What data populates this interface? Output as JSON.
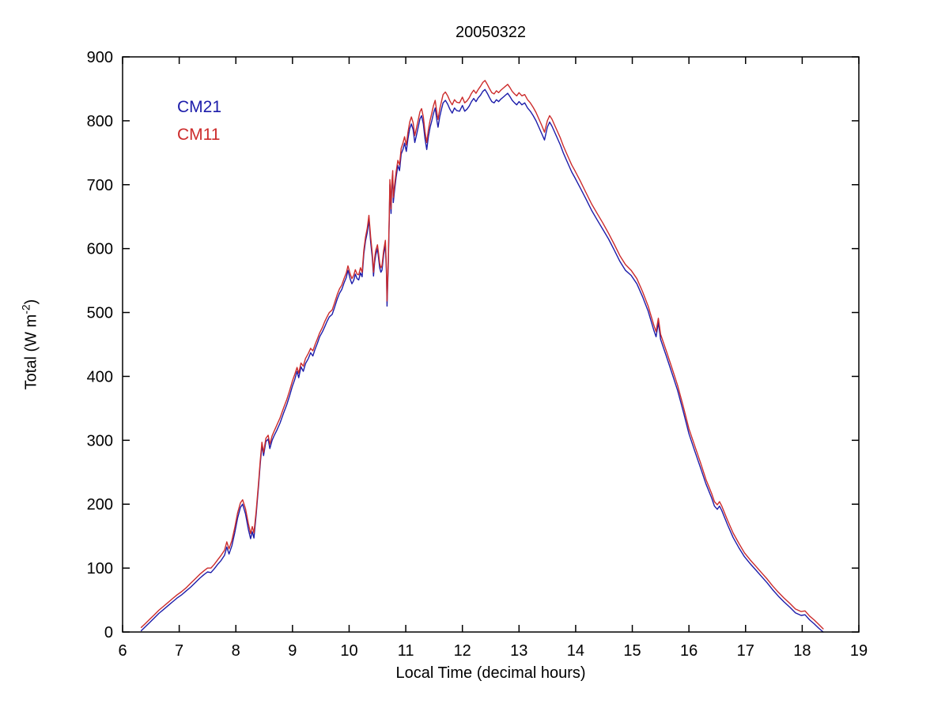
{
  "figure": {
    "title": "20050322",
    "xlabel": "Local Time (decimal hours)",
    "ylabel_main": "Total (W m",
    "ylabel_sup": "-2",
    "ylabel_end": ")",
    "legend": [
      {
        "label": "CM21",
        "color": "#1c1caa"
      },
      {
        "label": "CM11",
        "color": "#cc2b2b"
      }
    ],
    "axis_color": "#000000",
    "background_color": "#ffffff"
  },
  "chart_data": {
    "type": "line",
    "title": "20050322",
    "xlabel": "Local Time (decimal hours)",
    "ylabel": "Total (W m⁻²)",
    "xlim": [
      6,
      19
    ],
    "ylim": [
      0,
      900
    ],
    "xticks": [
      6,
      7,
      8,
      9,
      10,
      11,
      12,
      13,
      14,
      15,
      16,
      17,
      18,
      19
    ],
    "yticks": [
      0,
      100,
      200,
      300,
      400,
      500,
      600,
      700,
      800,
      900
    ],
    "grid": false,
    "legend_position": "upper-left-text",
    "x": [
      6.33,
      6.4,
      6.48,
      6.56,
      6.64,
      6.72,
      6.8,
      6.88,
      6.96,
      7.04,
      7.12,
      7.2,
      7.28,
      7.36,
      7.44,
      7.5,
      7.56,
      7.62,
      7.68,
      7.74,
      7.8,
      7.84,
      7.88,
      7.93,
      7.98,
      8.03,
      8.08,
      8.12,
      8.17,
      8.22,
      8.26,
      8.29,
      8.32,
      8.36,
      8.4,
      8.43,
      8.46,
      8.49,
      8.53,
      8.57,
      8.6,
      8.64,
      8.68,
      8.72,
      8.78,
      8.84,
      8.9,
      8.95,
      9.0,
      9.04,
      9.08,
      9.11,
      9.15,
      9.19,
      9.23,
      9.28,
      9.32,
      9.36,
      9.4,
      9.44,
      9.48,
      9.53,
      9.57,
      9.61,
      9.65,
      9.7,
      9.74,
      9.79,
      9.83,
      9.87,
      9.91,
      9.95,
      9.98,
      10.02,
      10.05,
      10.08,
      10.11,
      10.14,
      10.17,
      10.2,
      10.23,
      10.26,
      10.29,
      10.32,
      10.35,
      10.38,
      10.41,
      10.43,
      10.45,
      10.47,
      10.5,
      10.52,
      10.54,
      10.56,
      10.58,
      10.61,
      10.64,
      10.66,
      10.67,
      10.69,
      10.71,
      10.72,
      10.74,
      10.75,
      10.77,
      10.78,
      10.8,
      10.83,
      10.86,
      10.89,
      10.92,
      10.95,
      10.98,
      11.01,
      11.04,
      11.07,
      11.1,
      11.13,
      11.16,
      11.19,
      11.22,
      11.25,
      11.28,
      11.31,
      11.34,
      11.37,
      11.4,
      11.43,
      11.46,
      11.49,
      11.52,
      11.55,
      11.57,
      11.6,
      11.63,
      11.66,
      11.7,
      11.74,
      11.78,
      11.82,
      11.86,
      11.9,
      11.95,
      12.0,
      12.04,
      12.08,
      12.12,
      12.16,
      12.2,
      12.24,
      12.28,
      12.32,
      12.36,
      12.4,
      12.44,
      12.48,
      12.52,
      12.56,
      12.6,
      12.64,
      12.68,
      12.72,
      12.76,
      12.8,
      12.84,
      12.88,
      12.92,
      12.96,
      13.0,
      13.05,
      13.1,
      13.15,
      13.2,
      13.25,
      13.3,
      13.35,
      13.4,
      13.45,
      13.5,
      13.54,
      13.58,
      13.63,
      13.68,
      13.73,
      13.78,
      13.83,
      13.88,
      13.93,
      13.98,
      14.08,
      14.18,
      14.28,
      14.38,
      14.48,
      14.58,
      14.68,
      14.78,
      14.88,
      14.98,
      15.08,
      15.18,
      15.28,
      15.38,
      15.42,
      15.46,
      15.5,
      15.6,
      15.7,
      15.8,
      15.9,
      16.0,
      16.1,
      16.2,
      16.3,
      16.4,
      16.45,
      16.5,
      16.54,
      16.58,
      16.68,
      16.78,
      16.88,
      16.98,
      17.08,
      17.18,
      17.28,
      17.38,
      17.48,
      17.58,
      17.68,
      17.78,
      17.88,
      17.98,
      18.05,
      18.13,
      18.21,
      18.29,
      18.37
    ],
    "series": [
      {
        "name": "CM21",
        "color": "#1c1caa",
        "values": [
          2,
          8,
          15,
          22,
          29,
          35,
          41,
          47,
          53,
          58,
          64,
          70,
          77,
          84,
          90,
          94,
          93,
          99,
          106,
          112,
          120,
          133,
          122,
          135,
          155,
          178,
          195,
          200,
          185,
          161,
          146,
          157,
          147,
          185,
          228,
          262,
          292,
          276,
          298,
          302,
          287,
          300,
          308,
          315,
          327,
          342,
          356,
          370,
          385,
          395,
          408,
          398,
          415,
          408,
          420,
          428,
          437,
          432,
          443,
          452,
          462,
          470,
          478,
          486,
          493,
          497,
          507,
          521,
          530,
          536,
          546,
          555,
          566,
          552,
          545,
          550,
          560,
          553,
          551,
          562,
          556,
          592,
          612,
          625,
          645,
          610,
          585,
          557,
          578,
          590,
          600,
          585,
          570,
          563,
          566,
          590,
          606,
          560,
          510,
          570,
          650,
          700,
          655,
          690,
          715,
          672,
          690,
          712,
          730,
          722,
          748,
          755,
          765,
          752,
          772,
          788,
          795,
          786,
          766,
          778,
          790,
          803,
          808,
          795,
          772,
          755,
          775,
          790,
          800,
          812,
          820,
          800,
          790,
          806,
          818,
          828,
          832,
          826,
          818,
          812,
          820,
          816,
          815,
          824,
          815,
          818,
          823,
          830,
          835,
          830,
          836,
          840,
          846,
          849,
          843,
          836,
          830,
          828,
          833,
          830,
          834,
          837,
          840,
          843,
          838,
          832,
          828,
          825,
          830,
          825,
          828,
          820,
          815,
          808,
          800,
          790,
          780,
          770,
          790,
          798,
          792,
          782,
          772,
          762,
          750,
          740,
          730,
          720,
          712,
          695,
          678,
          660,
          645,
          630,
          615,
          598,
          580,
          566,
          558,
          545,
          525,
          502,
          472,
          462,
          484,
          458,
          432,
          405,
          378,
          345,
          310,
          284,
          258,
          232,
          210,
          197,
          192,
          197,
          190,
          168,
          148,
          132,
          118,
          107,
          97,
          87,
          77,
          66,
          56,
          47,
          39,
          30,
          26,
          27,
          19,
          13,
          6,
          0
        ]
      },
      {
        "name": "CM11",
        "color": "#cc2b2b",
        "values": [
          7,
          13,
          20,
          27,
          34,
          40,
          46,
          52,
          58,
          63,
          69,
          76,
          83,
          90,
          96,
          100,
          100,
          106,
          113,
          120,
          128,
          141,
          130,
          143,
          163,
          186,
          202,
          207,
          193,
          170,
          154,
          165,
          155,
          190,
          233,
          267,
          297,
          281,
          303,
          308,
          294,
          307,
          315,
          323,
          335,
          350,
          364,
          378,
          393,
          403,
          414,
          405,
          421,
          416,
          428,
          436,
          444,
          440,
          450,
          459,
          468,
          477,
          486,
          493,
          500,
          504,
          514,
          528,
          537,
          543,
          553,
          562,
          573,
          560,
          553,
          558,
          567,
          560,
          559,
          570,
          563,
          598,
          618,
          632,
          652,
          618,
          592,
          563,
          585,
          597,
          606,
          592,
          577,
          570,
          573,
          597,
          613,
          568,
          518,
          578,
          657,
          708,
          662,
          698,
          722,
          680,
          698,
          720,
          738,
          731,
          757,
          765,
          775,
          762,
          782,
          798,
          806,
          797,
          777,
          789,
          801,
          814,
          819,
          806,
          783,
          766,
          786,
          801,
          812,
          824,
          832,
          812,
          802,
          818,
          830,
          841,
          845,
          839,
          831,
          825,
          833,
          829,
          828,
          837,
          828,
          831,
          836,
          843,
          848,
          843,
          849,
          854,
          860,
          863,
          857,
          850,
          844,
          842,
          847,
          844,
          848,
          851,
          854,
          857,
          852,
          846,
          842,
          839,
          844,
          839,
          841,
          833,
          828,
          821,
          813,
          803,
          793,
          782,
          800,
          808,
          803,
          793,
          783,
          773,
          761,
          751,
          741,
          731,
          723,
          706,
          688,
          670,
          655,
          640,
          624,
          607,
          589,
          575,
          566,
          553,
          533,
          510,
          480,
          470,
          491,
          466,
          440,
          413,
          386,
          353,
          318,
          292,
          266,
          239,
          217,
          204,
          199,
          204,
          197,
          175,
          155,
          139,
          124,
          113,
          103,
          93,
          83,
          72,
          62,
          53,
          45,
          36,
          32,
          33,
          25,
          19,
          12,
          5
        ]
      }
    ]
  }
}
